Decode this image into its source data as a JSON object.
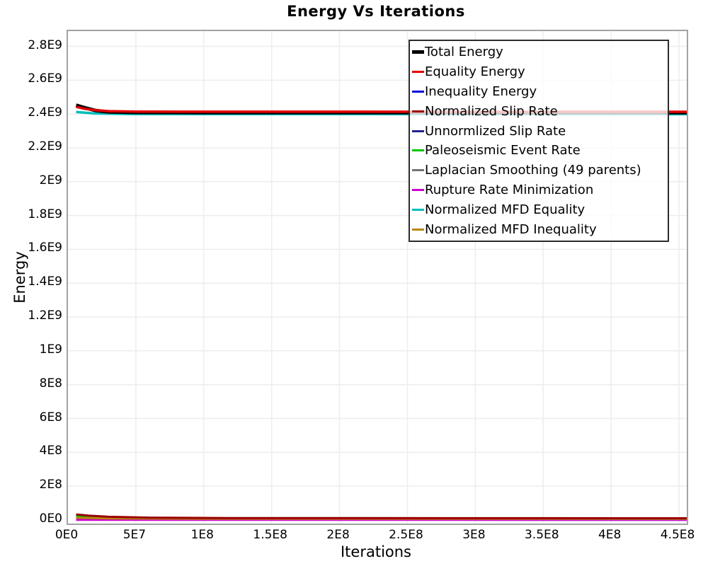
{
  "title": "Energy Vs Iterations",
  "chart_data": {
    "type": "line",
    "title": "Energy Vs Iterations",
    "xlabel": "Iterations",
    "ylabel": "Energy",
    "xlim": [
      0,
      455700000
    ],
    "ylim": [
      -21000000,
      2890000000
    ],
    "grid": true,
    "legend_position": "top-right-inside",
    "x_ticks": {
      "values": [
        0,
        50000000,
        100000000,
        150000000,
        200000000,
        250000000,
        300000000,
        350000000,
        400000000,
        450000000
      ],
      "labels": [
        "0E0",
        "5E7",
        "1E8",
        "1.5E8",
        "2E8",
        "2.5E8",
        "3E8",
        "3.5E8",
        "4E8",
        "4.5E8"
      ]
    },
    "y_ticks": {
      "values": [
        0,
        200000000,
        400000000,
        600000000,
        800000000,
        1000000000,
        1200000000,
        1400000000,
        1600000000,
        1800000000,
        2000000000,
        2200000000,
        2400000000,
        2600000000,
        2800000000
      ],
      "labels": [
        "0E0",
        "2E8",
        "4E8",
        "6E8",
        "8E8",
        "1E9",
        "1.2E9",
        "1.4E9",
        "1.6E9",
        "1.8E9",
        "2E9",
        "2.2E9",
        "2.4E9",
        "2.6E9",
        "2.8E9"
      ]
    },
    "draw_order": [
      2,
      4,
      6,
      7,
      5,
      9,
      3,
      8,
      0,
      1
    ],
    "series": [
      {
        "name": "Total Energy",
        "color": "#000000",
        "line_width": 5,
        "points": [
          [
            6000000,
            2452000000
          ],
          [
            12000000,
            2438000000
          ],
          [
            20000000,
            2421000000
          ],
          [
            30000000,
            2412000000
          ],
          [
            50000000,
            2409500000
          ],
          [
            100000000,
            2408500000
          ],
          [
            455700000,
            2408000000
          ]
        ]
      },
      {
        "name": "Equality Energy",
        "color": "#e00000",
        "line_width": 3.5,
        "points": [
          [
            6000000,
            2443000000
          ],
          [
            12000000,
            2431000000
          ],
          [
            20000000,
            2423000000
          ],
          [
            30000000,
            2417000000
          ],
          [
            50000000,
            2414500000
          ],
          [
            100000000,
            2413500000
          ],
          [
            455700000,
            2413000000
          ]
        ]
      },
      {
        "name": "Inequality Energy",
        "color": "#0000e0",
        "line_width": 3,
        "points": [
          [
            6000000,
            2000000
          ],
          [
            455700000,
            1500000
          ]
        ]
      },
      {
        "name": "Normalized Slip Rate",
        "color": "#990000",
        "line_width": 3,
        "points": [
          [
            6000000,
            33000000
          ],
          [
            15000000,
            26000000
          ],
          [
            30000000,
            19000000
          ],
          [
            60000000,
            14000000
          ],
          [
            120000000,
            11500000
          ],
          [
            455700000,
            10500000
          ]
        ]
      },
      {
        "name": "Unnormlized Slip Rate",
        "color": "#232394",
        "line_width": 3,
        "points": [
          [
            6000000,
            3000000
          ],
          [
            455700000,
            2000000
          ]
        ]
      },
      {
        "name": "Paleoseismic Event Rate",
        "color": "#00c300",
        "line_width": 3,
        "points": [
          [
            6000000,
            23000000
          ],
          [
            15000000,
            18000000
          ],
          [
            30000000,
            13000000
          ],
          [
            60000000,
            10000000
          ],
          [
            120000000,
            8500000
          ],
          [
            455700000,
            8000000
          ]
        ]
      },
      {
        "name": "Laplacian Smoothing (49 parents)",
        "color": "#737373",
        "line_width": 3,
        "points": [
          [
            6000000,
            4500000
          ],
          [
            455700000,
            3000000
          ]
        ]
      },
      {
        "name": "Rupture Rate Minimization",
        "color": "#cf00cf",
        "line_width": 3,
        "points": [
          [
            6000000,
            1000000
          ],
          [
            455700000,
            1000000
          ]
        ]
      },
      {
        "name": "Normalized MFD Equality",
        "color": "#00bdbd",
        "line_width": 3.5,
        "points": [
          [
            6000000,
            2412000000
          ],
          [
            20000000,
            2403000000
          ],
          [
            50000000,
            2400000000
          ],
          [
            455700000,
            2399000000
          ]
        ]
      },
      {
        "name": "Normalized MFD Inequality",
        "color": "#b8860b",
        "line_width": 3,
        "points": [
          [
            6000000,
            13000000
          ],
          [
            30000000,
            9000000
          ],
          [
            100000000,
            7500000
          ],
          [
            455700000,
            7000000
          ]
        ]
      }
    ]
  },
  "colors": {
    "grid": "#ededed",
    "plot_border": "#a2a2a2",
    "legend_border": "#2b2b2b",
    "text": "#000000"
  }
}
